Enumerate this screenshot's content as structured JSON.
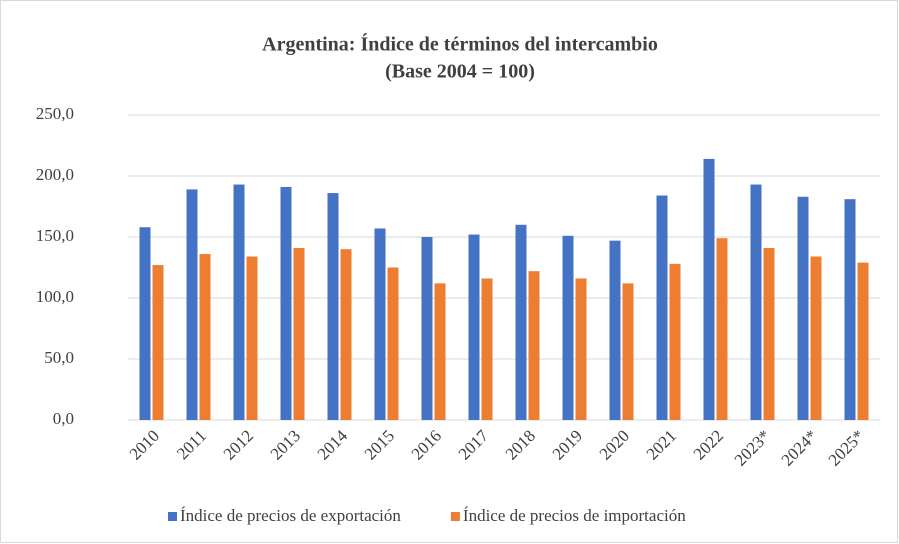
{
  "chart_data": {
    "type": "bar",
    "title": "Argentina: Índice de términos del intercambio",
    "subtitle": "(Base 2004 = 100)",
    "categories": [
      "2010",
      "2011",
      "2012",
      "2013",
      "2014",
      "2015",
      "2016",
      "2017",
      "2018",
      "2019",
      "2020",
      "2021",
      "2022",
      "2023*",
      "2024*",
      "2025*"
    ],
    "series": [
      {
        "name": "Índice de precios de exportación",
        "color": "#4472c4",
        "values": [
          158,
          189,
          193,
          191,
          186,
          157,
          150,
          152,
          160,
          151,
          147,
          184,
          214,
          193,
          183,
          181
        ]
      },
      {
        "name": "Índice de precios de importación",
        "color": "#ed7d31",
        "values": [
          127,
          136,
          134,
          141,
          140,
          125,
          112,
          116,
          122,
          116,
          112,
          128,
          149,
          141,
          134,
          129
        ]
      }
    ],
    "ylim": [
      0,
      250
    ],
    "yticks": [
      {
        "value": 0,
        "label": "0,0"
      },
      {
        "value": 50,
        "label": "50,0"
      },
      {
        "value": 100,
        "label": "100,0"
      },
      {
        "value": 150,
        "label": "150,0"
      },
      {
        "value": 200,
        "label": "200,0"
      },
      {
        "value": 250,
        "label": "250,0"
      }
    ],
    "grid": true,
    "legend": "bottom"
  }
}
